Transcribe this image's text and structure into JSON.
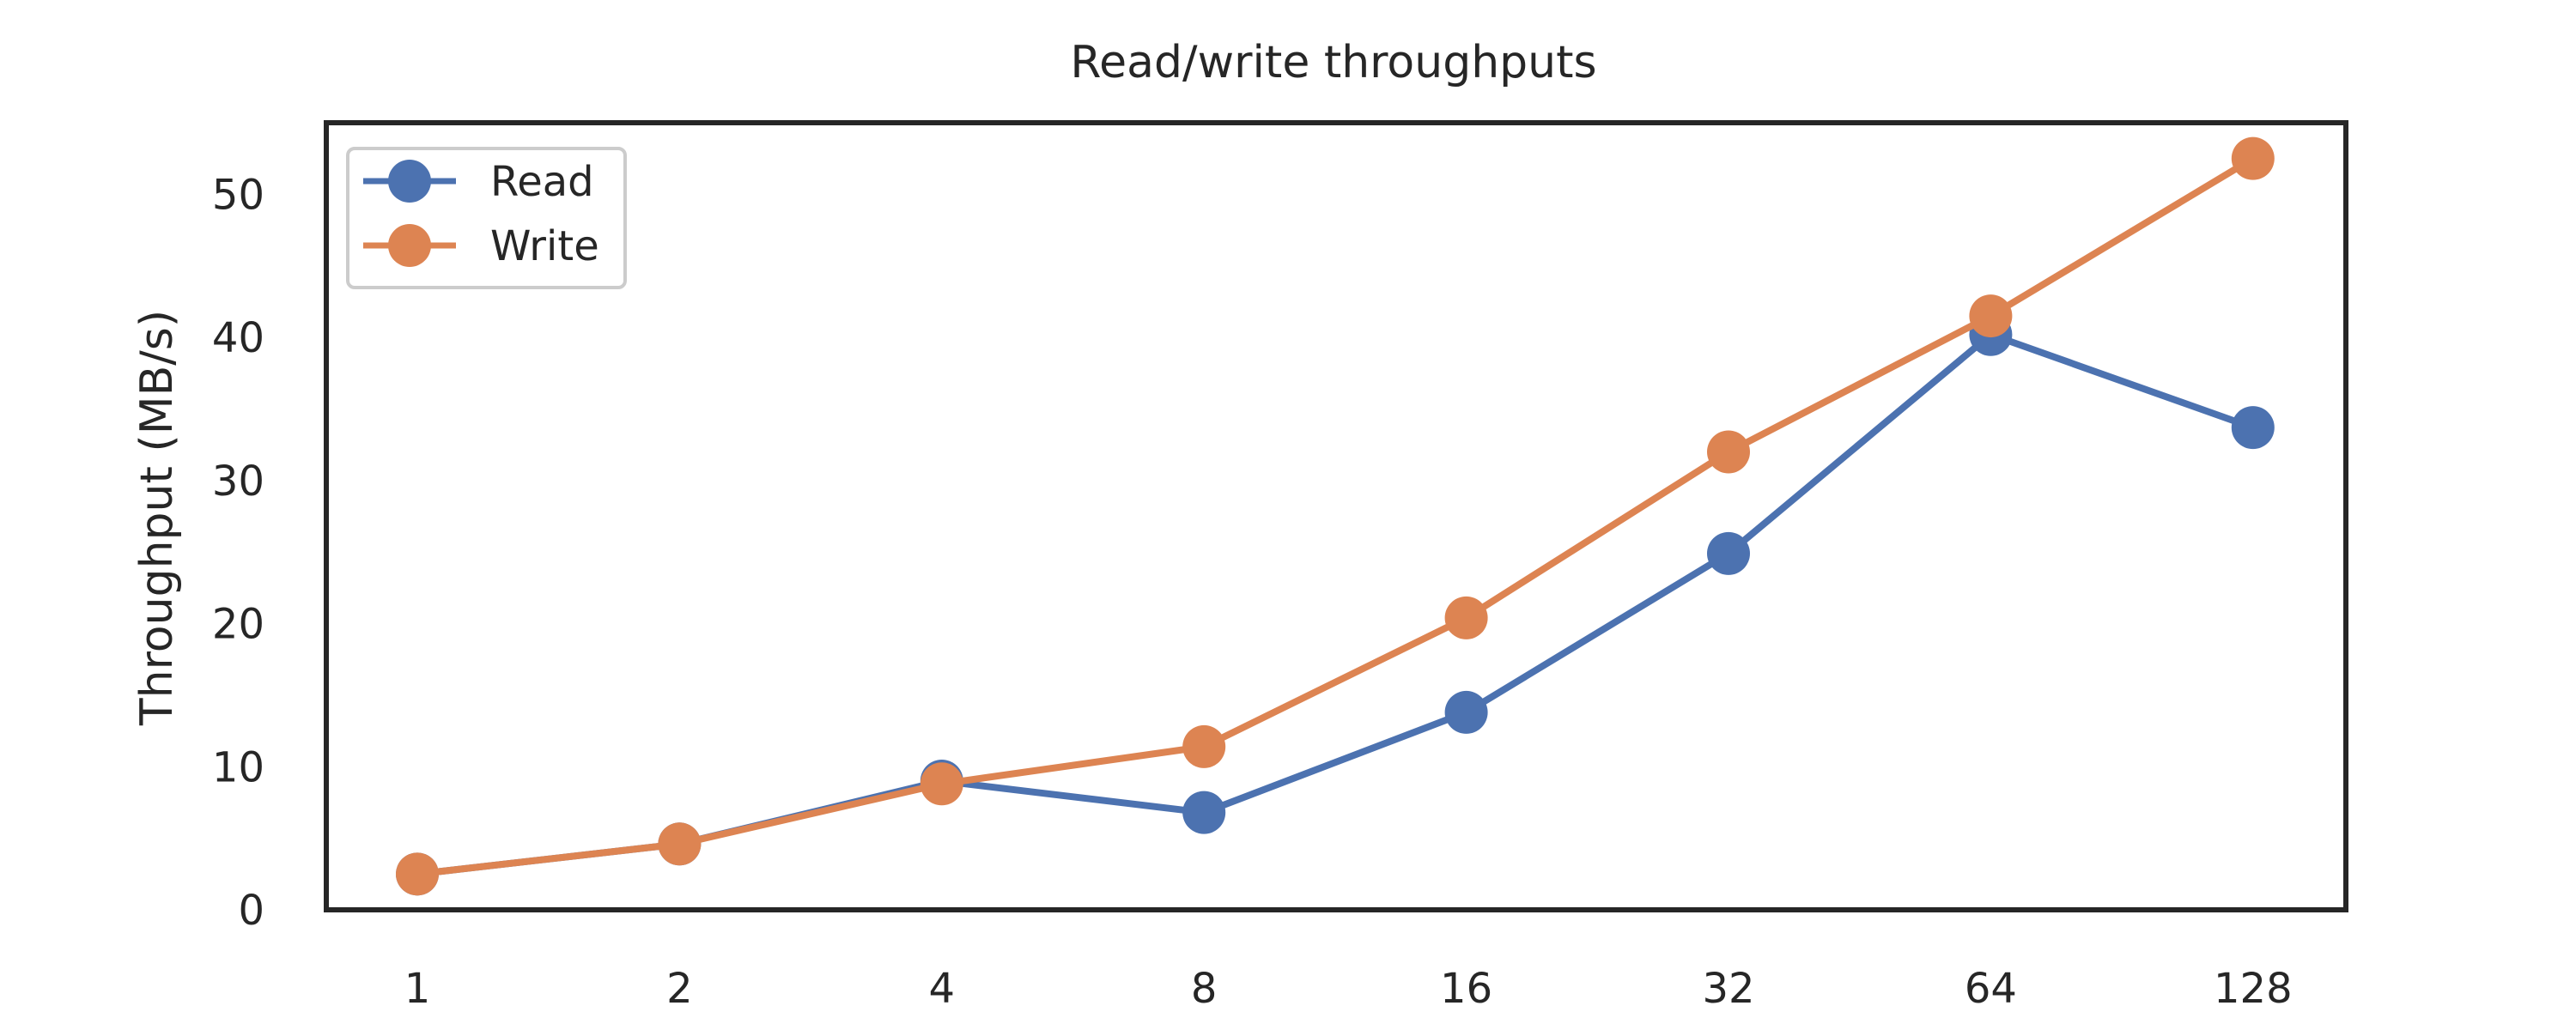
{
  "chart_data": {
    "type": "line",
    "title": "Read/write throughputs",
    "xlabel": "",
    "ylabel": "Throughput (MB/s)",
    "categories": [
      "1",
      "2",
      "4",
      "8",
      "16",
      "32",
      "64",
      "128"
    ],
    "series": [
      {
        "name": "Read",
        "color": "#4c72b0",
        "values": [
          2.5,
          4.6,
          9.0,
          6.8,
          13.8,
          24.9,
          40.2,
          33.7
        ]
      },
      {
        "name": "Write",
        "color": "#dd8452",
        "values": [
          2.5,
          4.6,
          8.8,
          11.4,
          20.4,
          32.0,
          41.5,
          52.5
        ]
      }
    ],
    "ylim": [
      0,
      55
    ],
    "yticks": [
      0,
      10,
      20,
      30,
      40,
      50
    ],
    "grid": false,
    "legend_position": "top-left"
  }
}
